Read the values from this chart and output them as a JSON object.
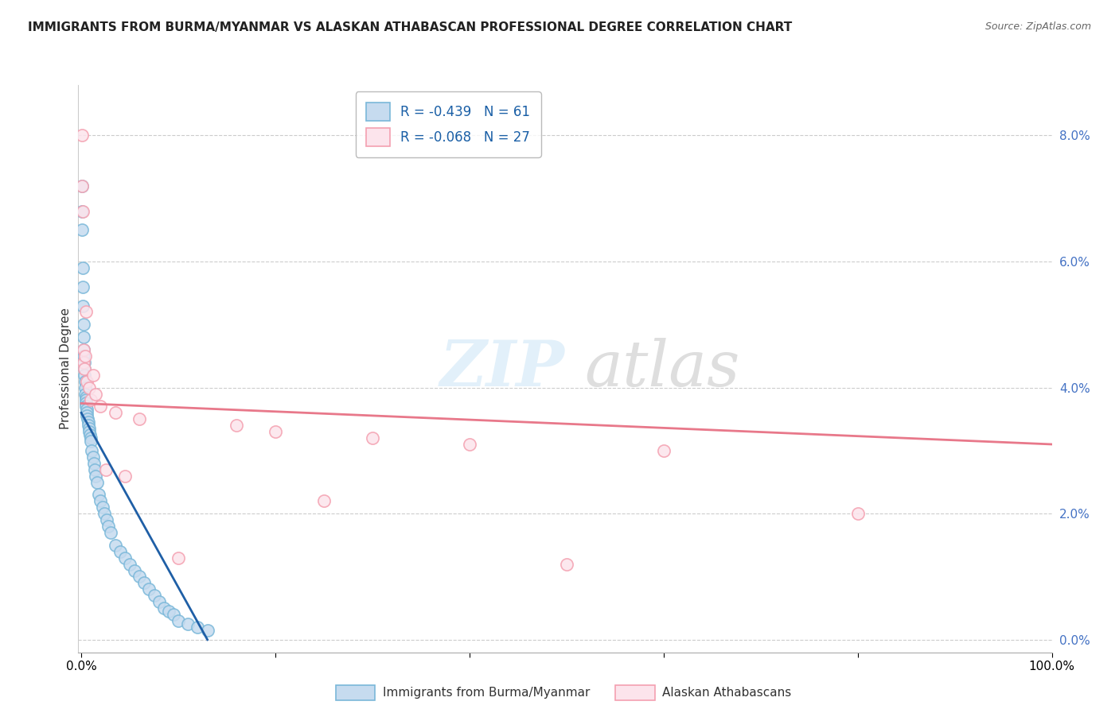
{
  "title": "IMMIGRANTS FROM BURMA/MYANMAR VS ALASKAN ATHABASCAN PROFESSIONAL DEGREE CORRELATION CHART",
  "source": "Source: ZipAtlas.com",
  "ylabel": "Professional Degree",
  "right_ytick_vals": [
    0.0,
    2.0,
    4.0,
    6.0,
    8.0
  ],
  "legend_r1": "R = -0.439   N = 61",
  "legend_r2": "R = -0.068   N = 27",
  "legend_label1": "Immigrants from Burma/Myanmar",
  "legend_label2": "Alaskan Athabascans",
  "blue_edge": "#7ab8d9",
  "blue_fill": "#c6dbef",
  "pink_edge": "#f4a0b0",
  "pink_fill": "#fce4ec",
  "blue_line_color": "#1f5fa6",
  "pink_line_color": "#e8788a",
  "background_color": "#ffffff",
  "grid_color": "#cccccc",
  "blue_x": [
    0.05,
    0.08,
    0.1,
    0.12,
    0.15,
    0.18,
    0.2,
    0.22,
    0.25,
    0.28,
    0.3,
    0.32,
    0.35,
    0.38,
    0.4,
    0.42,
    0.45,
    0.48,
    0.5,
    0.52,
    0.55,
    0.58,
    0.6,
    0.65,
    0.7,
    0.75,
    0.8,
    0.85,
    0.9,
    0.95,
    1.0,
    1.1,
    1.2,
    1.3,
    1.4,
    1.5,
    1.6,
    1.8,
    2.0,
    2.2,
    2.4,
    2.6,
    2.8,
    3.0,
    3.5,
    4.0,
    4.5,
    5.0,
    5.5,
    6.0,
    6.5,
    7.0,
    7.5,
    8.0,
    8.5,
    9.0,
    9.5,
    10.0,
    11.0,
    12.0,
    13.0
  ],
  "blue_y": [
    7.2,
    6.8,
    6.5,
    5.9,
    5.6,
    5.3,
    5.0,
    4.8,
    4.6,
    4.5,
    4.4,
    4.3,
    4.2,
    4.1,
    4.0,
    3.9,
    3.85,
    3.8,
    3.75,
    3.7,
    3.65,
    3.6,
    3.55,
    3.5,
    3.45,
    3.4,
    3.35,
    3.3,
    3.25,
    3.2,
    3.15,
    3.0,
    2.9,
    2.8,
    2.7,
    2.6,
    2.5,
    2.3,
    2.2,
    2.1,
    2.0,
    1.9,
    1.8,
    1.7,
    1.5,
    1.4,
    1.3,
    1.2,
    1.1,
    1.0,
    0.9,
    0.8,
    0.7,
    0.6,
    0.5,
    0.45,
    0.4,
    0.3,
    0.25,
    0.2,
    0.15
  ],
  "pink_x": [
    0.05,
    0.1,
    0.15,
    0.2,
    0.25,
    0.3,
    0.4,
    0.5,
    0.6,
    0.8,
    1.0,
    1.2,
    1.5,
    2.0,
    2.5,
    3.5,
    4.5,
    6.0,
    10.0,
    16.0,
    20.0,
    25.0,
    30.0,
    40.0,
    50.0,
    60.0,
    80.0
  ],
  "pink_y": [
    8.0,
    7.2,
    6.8,
    4.6,
    4.4,
    4.3,
    4.5,
    5.2,
    4.1,
    4.0,
    3.8,
    4.2,
    3.9,
    3.7,
    2.7,
    3.6,
    2.6,
    3.5,
    1.3,
    3.4,
    3.3,
    2.2,
    3.2,
    3.1,
    1.2,
    3.0,
    2.0
  ],
  "blue_trend_x0": 0.0,
  "blue_trend_y0": 3.6,
  "blue_trend_x1": 13.0,
  "blue_trend_y1": 0.0,
  "pink_trend_x0": 0.0,
  "pink_trend_y0": 3.75,
  "pink_trend_x1": 100.0,
  "pink_trend_y1": 3.1,
  "xlim_min": -0.3,
  "xlim_max": 100.0,
  "ylim_min": -0.2,
  "ylim_max": 8.8
}
